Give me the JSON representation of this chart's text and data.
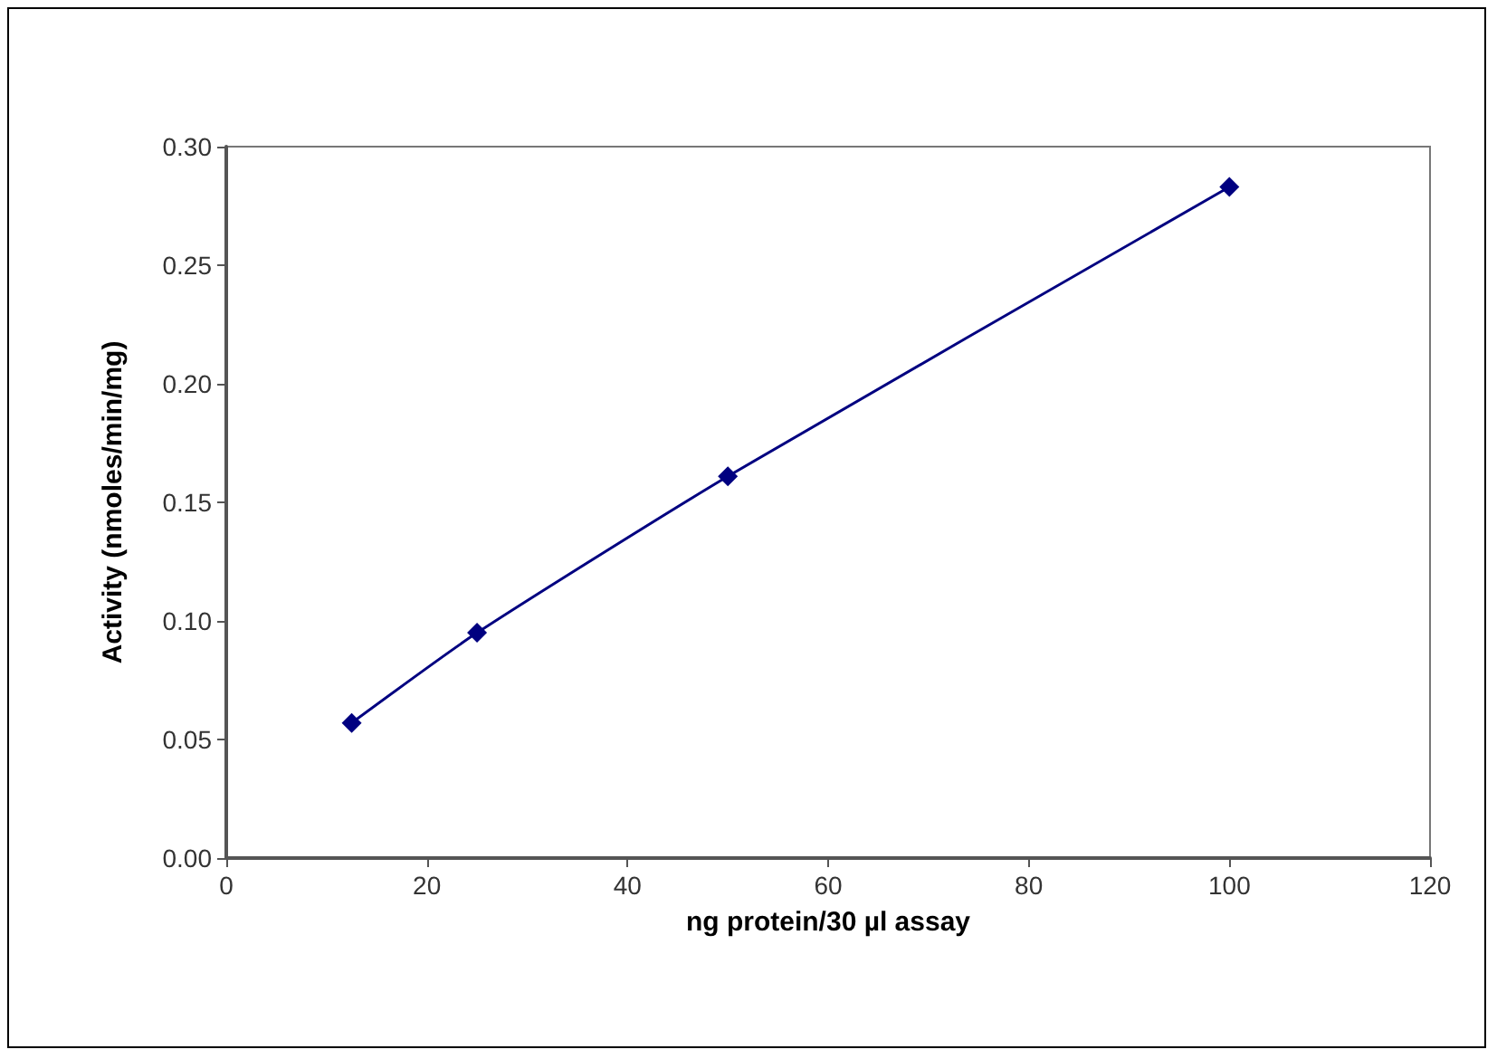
{
  "chart_data": {
    "type": "line",
    "xlabel": "ng protein/30 µl assay",
    "ylabel": "Activity (nmoles/min/mg)",
    "x": [
      12.5,
      25,
      50,
      100
    ],
    "series": [
      {
        "color": "#000080",
        "values": [
          0.057,
          0.095,
          0.161,
          0.283
        ]
      }
    ],
    "xlim": [
      0,
      120
    ],
    "xticks": [
      0,
      20,
      40,
      60,
      80,
      100,
      120
    ],
    "ylim": [
      0,
      0.3
    ],
    "yticks": [
      {
        "value": 0,
        "label": "0.00"
      },
      {
        "value": 0.05,
        "label": "0.05"
      },
      {
        "value": 0.1,
        "label": "0.10"
      },
      {
        "value": 0.15,
        "label": "0.15"
      },
      {
        "value": 0.2,
        "label": "0.20"
      },
      {
        "value": 0.25,
        "label": "0.25"
      },
      {
        "value": 0.3,
        "label": "0.30"
      }
    ],
    "grid": false,
    "marker": "diamond",
    "line_style": "solid"
  }
}
